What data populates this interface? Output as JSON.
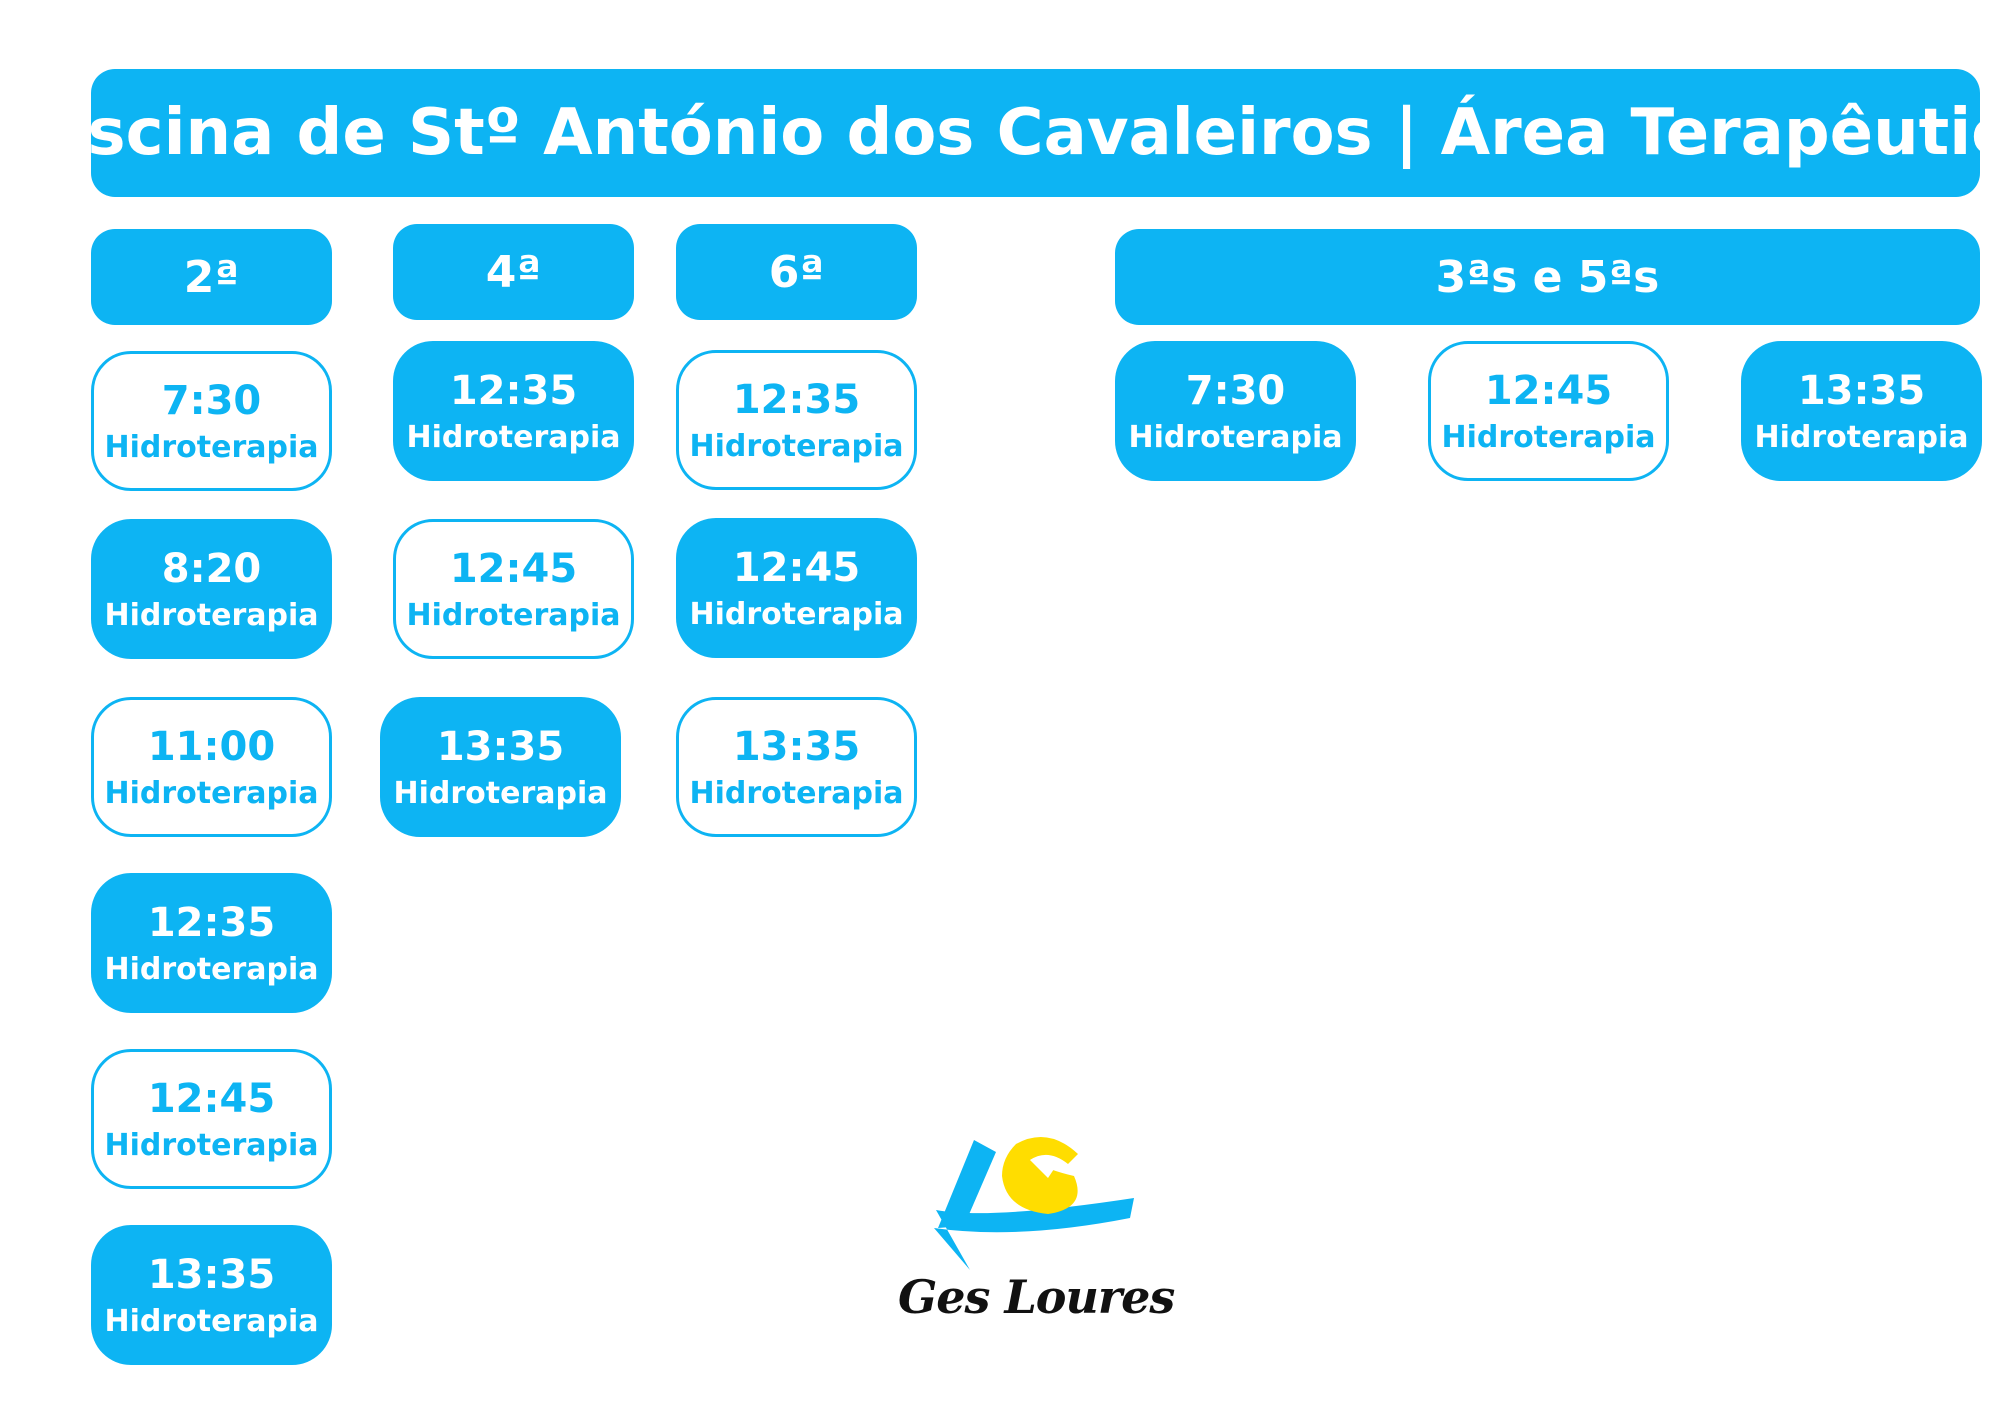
{
  "header": {
    "title": "Piscina de Stº António dos Cavaleiros | Área Terapêutica"
  },
  "days": [
    {
      "label": "2ª",
      "slots": [
        {
          "time": "7:30",
          "activity": "Hidroterapia",
          "style": "outline"
        },
        {
          "time": "8:20",
          "activity": "Hidroterapia",
          "style": "filled"
        },
        {
          "time": "11:00",
          "activity": "Hidroterapia",
          "style": "outline"
        },
        {
          "time": "12:35",
          "activity": "Hidroterapia",
          "style": "filled"
        },
        {
          "time": "12:45",
          "activity": "Hidroterapia",
          "style": "outline"
        },
        {
          "time": "13:35",
          "activity": "Hidroterapia",
          "style": "filled"
        }
      ]
    },
    {
      "label": "4ª",
      "slots": [
        {
          "time": "12:35",
          "activity": "Hidroterapia",
          "style": "filled"
        },
        {
          "time": "12:45",
          "activity": "Hidroterapia",
          "style": "outline"
        },
        {
          "time": "13:35",
          "activity": "Hidroterapia",
          "style": "filled"
        }
      ]
    },
    {
      "label": "6ª",
      "slots": [
        {
          "time": "12:35",
          "activity": "Hidroterapia",
          "style": "outline"
        },
        {
          "time": "12:45",
          "activity": "Hidroterapia",
          "style": "filled"
        },
        {
          "time": "13:35",
          "activity": "Hidroterapia",
          "style": "outline"
        }
      ]
    },
    {
      "label": "3ªs e 5ªs",
      "slots": [
        {
          "time": "7:30",
          "activity": "Hidroterapia",
          "style": "filled"
        },
        {
          "time": "12:45",
          "activity": "Hidroterapia",
          "style": "outline"
        },
        {
          "time": "13:35",
          "activity": "Hidroterapia",
          "style": "filled"
        }
      ]
    }
  ],
  "logo": {
    "text": "Ges Loures",
    "icon": "gesloures-logo-icon",
    "colors": {
      "blue": "#0db4f3",
      "yellow": "#ffdd00",
      "dark": "#111111"
    }
  },
  "colors": {
    "accent": "#0db4f3",
    "background": "#ffffff"
  }
}
